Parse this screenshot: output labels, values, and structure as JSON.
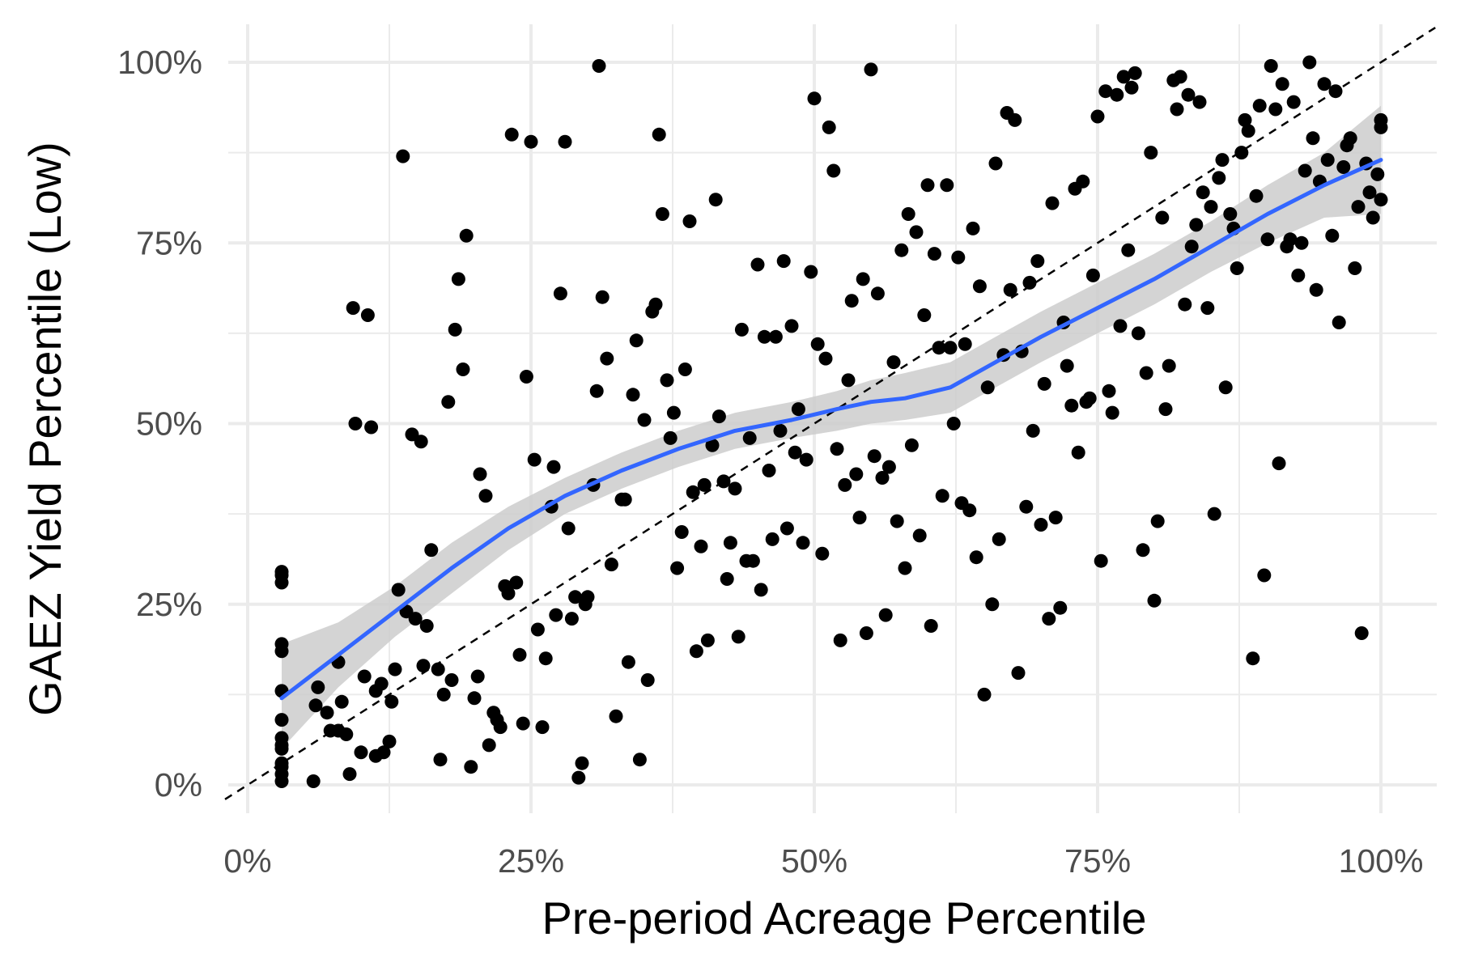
{
  "chart_data": {
    "type": "scatter",
    "title": "",
    "xlabel": "Pre-period Acreage Percentile",
    "ylabel": "GAEZ Yield Percentile (Low)",
    "xlim": [
      -0.02,
      1.05
    ],
    "ylim": [
      -0.02,
      1.03
    ],
    "x_ticks": [
      0,
      0.25,
      0.5,
      0.75,
      1.0
    ],
    "x_tick_labels": [
      "0%",
      "25%",
      "50%",
      "75%",
      "100%"
    ],
    "y_ticks": [
      0,
      0.25,
      0.5,
      0.75,
      1.0
    ],
    "y_tick_labels": [
      "0%",
      "25%",
      "50%",
      "75%",
      "100%"
    ],
    "grid": true,
    "reference_line": {
      "slope": 1,
      "intercept": 0,
      "style": "dashed"
    },
    "colors": {
      "points": "#000000",
      "smooth_line": "#3366ff",
      "ribbon": "#cccccc",
      "grid": "#ebebeb",
      "reference": "#000000"
    },
    "smooth": {
      "x": [
        0.03,
        0.08,
        0.13,
        0.18,
        0.23,
        0.28,
        0.33,
        0.38,
        0.43,
        0.48,
        0.52,
        0.55,
        0.58,
        0.62,
        0.66,
        0.7,
        0.75,
        0.8,
        0.85,
        0.9,
        0.95,
        1.0
      ],
      "y": [
        0.12,
        0.18,
        0.24,
        0.3,
        0.355,
        0.4,
        0.435,
        0.465,
        0.49,
        0.505,
        0.52,
        0.53,
        0.535,
        0.55,
        0.585,
        0.62,
        0.66,
        0.7,
        0.745,
        0.79,
        0.83,
        0.865
      ],
      "lower": [
        0.05,
        0.135,
        0.205,
        0.265,
        0.325,
        0.375,
        0.41,
        0.44,
        0.465,
        0.48,
        0.49,
        0.5,
        0.505,
        0.515,
        0.55,
        0.585,
        0.625,
        0.665,
        0.71,
        0.75,
        0.785,
        0.79
      ],
      "upper": [
        0.195,
        0.225,
        0.275,
        0.335,
        0.385,
        0.425,
        0.46,
        0.49,
        0.515,
        0.53,
        0.545,
        0.56,
        0.57,
        0.585,
        0.62,
        0.655,
        0.695,
        0.735,
        0.78,
        0.83,
        0.875,
        0.94
      ]
    },
    "points": [
      [
        0.03,
        0.005
      ],
      [
        0.03,
        0.015
      ],
      [
        0.03,
        0.025
      ],
      [
        0.03,
        0.03
      ],
      [
        0.03,
        0.05
      ],
      [
        0.03,
        0.055
      ],
      [
        0.03,
        0.065
      ],
      [
        0.03,
        0.09
      ],
      [
        0.03,
        0.13
      ],
      [
        0.03,
        0.185
      ],
      [
        0.03,
        0.195
      ],
      [
        0.03,
        0.28
      ],
      [
        0.03,
        0.29
      ],
      [
        0.03,
        0.295
      ],
      [
        0.058,
        0.005
      ],
      [
        0.06,
        0.11
      ],
      [
        0.062,
        0.135
      ],
      [
        0.07,
        0.1
      ],
      [
        0.073,
        0.075
      ],
      [
        0.08,
        0.075
      ],
      [
        0.08,
        0.17
      ],
      [
        0.083,
        0.115
      ],
      [
        0.087,
        0.07
      ],
      [
        0.09,
        0.015
      ],
      [
        0.093,
        0.66
      ],
      [
        0.095,
        0.5
      ],
      [
        0.1,
        0.045
      ],
      [
        0.103,
        0.15
      ],
      [
        0.106,
        0.65
      ],
      [
        0.109,
        0.495
      ],
      [
        0.113,
        0.04
      ],
      [
        0.113,
        0.13
      ],
      [
        0.118,
        0.14
      ],
      [
        0.12,
        0.045
      ],
      [
        0.125,
        0.06
      ],
      [
        0.127,
        0.115
      ],
      [
        0.13,
        0.16
      ],
      [
        0.133,
        0.27
      ],
      [
        0.137,
        0.87
      ],
      [
        0.14,
        0.24
      ],
      [
        0.145,
        0.485
      ],
      [
        0.148,
        0.23
      ],
      [
        0.153,
        0.475
      ],
      [
        0.155,
        0.165
      ],
      [
        0.158,
        0.22
      ],
      [
        0.162,
        0.325
      ],
      [
        0.168,
        0.16
      ],
      [
        0.17,
        0.035
      ],
      [
        0.173,
        0.125
      ],
      [
        0.177,
        0.53
      ],
      [
        0.18,
        0.145
      ],
      [
        0.183,
        0.63
      ],
      [
        0.186,
        0.7
      ],
      [
        0.19,
        0.575
      ],
      [
        0.193,
        0.76
      ],
      [
        0.197,
        0.025
      ],
      [
        0.2,
        0.12
      ],
      [
        0.203,
        0.15
      ],
      [
        0.205,
        0.43
      ],
      [
        0.21,
        0.4
      ],
      [
        0.213,
        0.055
      ],
      [
        0.217,
        0.1
      ],
      [
        0.22,
        0.09
      ],
      [
        0.223,
        0.08
      ],
      [
        0.227,
        0.275
      ],
      [
        0.23,
        0.265
      ],
      [
        0.233,
        0.9
      ],
      [
        0.237,
        0.28
      ],
      [
        0.24,
        0.18
      ],
      [
        0.243,
        0.085
      ],
      [
        0.246,
        0.565
      ],
      [
        0.25,
        0.89
      ],
      [
        0.253,
        0.45
      ],
      [
        0.256,
        0.215
      ],
      [
        0.26,
        0.08
      ],
      [
        0.263,
        0.175
      ],
      [
        0.268,
        0.385
      ],
      [
        0.27,
        0.44
      ],
      [
        0.272,
        0.235
      ],
      [
        0.276,
        0.68
      ],
      [
        0.28,
        0.89
      ],
      [
        0.283,
        0.355
      ],
      [
        0.286,
        0.23
      ],
      [
        0.289,
        0.26
      ],
      [
        0.292,
        0.01
      ],
      [
        0.295,
        0.03
      ],
      [
        0.298,
        0.25
      ],
      [
        0.3,
        0.26
      ],
      [
        0.305,
        0.415
      ],
      [
        0.308,
        0.545
      ],
      [
        0.31,
        0.995
      ],
      [
        0.313,
        0.675
      ],
      [
        0.317,
        0.59
      ],
      [
        0.321,
        0.305
      ],
      [
        0.325,
        0.095
      ],
      [
        0.33,
        0.395
      ],
      [
        0.333,
        0.395
      ],
      [
        0.336,
        0.17
      ],
      [
        0.34,
        0.54
      ],
      [
        0.343,
        0.615
      ],
      [
        0.346,
        0.035
      ],
      [
        0.35,
        0.505
      ],
      [
        0.353,
        0.145
      ],
      [
        0.357,
        0.655
      ],
      [
        0.36,
        0.665
      ],
      [
        0.363,
        0.9
      ],
      [
        0.366,
        0.79
      ],
      [
        0.37,
        0.56
      ],
      [
        0.373,
        0.48
      ],
      [
        0.376,
        0.515
      ],
      [
        0.379,
        0.3
      ],
      [
        0.383,
        0.35
      ],
      [
        0.386,
        0.575
      ],
      [
        0.39,
        0.78
      ],
      [
        0.393,
        0.405
      ],
      [
        0.396,
        0.185
      ],
      [
        0.4,
        0.33
      ],
      [
        0.403,
        0.415
      ],
      [
        0.406,
        0.2
      ],
      [
        0.41,
        0.47
      ],
      [
        0.413,
        0.81
      ],
      [
        0.416,
        0.51
      ],
      [
        0.42,
        0.42
      ],
      [
        0.423,
        0.285
      ],
      [
        0.426,
        0.335
      ],
      [
        0.43,
        0.41
      ],
      [
        0.433,
        0.205
      ],
      [
        0.436,
        0.63
      ],
      [
        0.44,
        0.31
      ],
      [
        0.443,
        0.48
      ],
      [
        0.446,
        0.31
      ],
      [
        0.45,
        0.72
      ],
      [
        0.453,
        0.27
      ],
      [
        0.456,
        0.62
      ],
      [
        0.46,
        0.435
      ],
      [
        0.463,
        0.34
      ],
      [
        0.466,
        0.62
      ],
      [
        0.47,
        0.49
      ],
      [
        0.473,
        0.725
      ],
      [
        0.476,
        0.355
      ],
      [
        0.48,
        0.635
      ],
      [
        0.483,
        0.46
      ],
      [
        0.486,
        0.52
      ],
      [
        0.49,
        0.335
      ],
      [
        0.493,
        0.45
      ],
      [
        0.497,
        0.71
      ],
      [
        0.5,
        0.95
      ],
      [
        0.503,
        0.61
      ],
      [
        0.507,
        0.32
      ],
      [
        0.51,
        0.59
      ],
      [
        0.513,
        0.91
      ],
      [
        0.517,
        0.85
      ],
      [
        0.52,
        0.465
      ],
      [
        0.523,
        0.2
      ],
      [
        0.527,
        0.415
      ],
      [
        0.53,
        0.56
      ],
      [
        0.533,
        0.67
      ],
      [
        0.537,
        0.43
      ],
      [
        0.54,
        0.37
      ],
      [
        0.543,
        0.7
      ],
      [
        0.546,
        0.21
      ],
      [
        0.55,
        0.99
      ],
      [
        0.553,
        0.455
      ],
      [
        0.556,
        0.68
      ],
      [
        0.56,
        0.425
      ],
      [
        0.563,
        0.235
      ],
      [
        0.566,
        0.44
      ],
      [
        0.57,
        0.585
      ],
      [
        0.573,
        0.365
      ],
      [
        0.577,
        0.74
      ],
      [
        0.58,
        0.3
      ],
      [
        0.583,
        0.79
      ],
      [
        0.586,
        0.47
      ],
      [
        0.59,
        0.765
      ],
      [
        0.593,
        0.345
      ],
      [
        0.597,
        0.65
      ],
      [
        0.6,
        0.83
      ],
      [
        0.603,
        0.22
      ],
      [
        0.606,
        0.735
      ],
      [
        0.61,
        0.605
      ],
      [
        0.613,
        0.4
      ],
      [
        0.617,
        0.83
      ],
      [
        0.62,
        0.605
      ],
      [
        0.623,
        0.5
      ],
      [
        0.627,
        0.73
      ],
      [
        0.63,
        0.39
      ],
      [
        0.633,
        0.61
      ],
      [
        0.637,
        0.38
      ],
      [
        0.64,
        0.77
      ],
      [
        0.643,
        0.315
      ],
      [
        0.646,
        0.69
      ],
      [
        0.65,
        0.125
      ],
      [
        0.653,
        0.55
      ],
      [
        0.657,
        0.25
      ],
      [
        0.66,
        0.86
      ],
      [
        0.663,
        0.34
      ],
      [
        0.667,
        0.595
      ],
      [
        0.67,
        0.93
      ],
      [
        0.673,
        0.685
      ],
      [
        0.677,
        0.92
      ],
      [
        0.68,
        0.155
      ],
      [
        0.683,
        0.6
      ],
      [
        0.687,
        0.385
      ],
      [
        0.69,
        0.695
      ],
      [
        0.693,
        0.49
      ],
      [
        0.697,
        0.725
      ],
      [
        0.7,
        0.36
      ],
      [
        0.703,
        0.555
      ],
      [
        0.707,
        0.23
      ],
      [
        0.71,
        0.805
      ],
      [
        0.713,
        0.37
      ],
      [
        0.717,
        0.245
      ],
      [
        0.72,
        0.64
      ],
      [
        0.723,
        0.58
      ],
      [
        0.727,
        0.525
      ],
      [
        0.73,
        0.825
      ],
      [
        0.733,
        0.46
      ],
      [
        0.737,
        0.835
      ],
      [
        0.74,
        0.53
      ],
      [
        0.743,
        0.535
      ],
      [
        0.746,
        0.705
      ],
      [
        0.75,
        0.925
      ],
      [
        0.753,
        0.31
      ],
      [
        0.757,
        0.96
      ],
      [
        0.76,
        0.545
      ],
      [
        0.763,
        0.515
      ],
      [
        0.767,
        0.955
      ],
      [
        0.77,
        0.635
      ],
      [
        0.773,
        0.98
      ],
      [
        0.777,
        0.74
      ],
      [
        0.78,
        0.965
      ],
      [
        0.783,
        0.985
      ],
      [
        0.786,
        0.625
      ],
      [
        0.79,
        0.325
      ],
      [
        0.793,
        0.57
      ],
      [
        0.797,
        0.875
      ],
      [
        0.8,
        0.255
      ],
      [
        0.803,
        0.365
      ],
      [
        0.807,
        0.785
      ],
      [
        0.81,
        0.52
      ],
      [
        0.813,
        0.58
      ],
      [
        0.817,
        0.975
      ],
      [
        0.82,
        0.935
      ],
      [
        0.823,
        0.98
      ],
      [
        0.827,
        0.665
      ],
      [
        0.83,
        0.955
      ],
      [
        0.833,
        0.745
      ],
      [
        0.837,
        0.775
      ],
      [
        0.84,
        0.945
      ],
      [
        0.843,
        0.82
      ],
      [
        0.847,
        0.66
      ],
      [
        0.85,
        0.8
      ],
      [
        0.853,
        0.375
      ],
      [
        0.857,
        0.84
      ],
      [
        0.86,
        0.865
      ],
      [
        0.863,
        0.55
      ],
      [
        0.867,
        0.79
      ],
      [
        0.87,
        0.77
      ],
      [
        0.873,
        0.715
      ],
      [
        0.877,
        0.875
      ],
      [
        0.88,
        0.92
      ],
      [
        0.883,
        0.905
      ],
      [
        0.887,
        0.175
      ],
      [
        0.89,
        0.815
      ],
      [
        0.893,
        0.94
      ],
      [
        0.897,
        0.29
      ],
      [
        0.9,
        0.755
      ],
      [
        0.903,
        0.995
      ],
      [
        0.907,
        0.935
      ],
      [
        0.91,
        0.445
      ],
      [
        0.913,
        0.97
      ],
      [
        0.917,
        0.745
      ],
      [
        0.92,
        0.755
      ],
      [
        0.923,
        0.945
      ],
      [
        0.927,
        0.705
      ],
      [
        0.93,
        0.75
      ],
      [
        0.933,
        0.85
      ],
      [
        0.937,
        1.0
      ],
      [
        0.94,
        0.895
      ],
      [
        0.943,
        0.685
      ],
      [
        0.946,
        0.835
      ],
      [
        0.95,
        0.97
      ],
      [
        0.953,
        0.865
      ],
      [
        0.957,
        0.76
      ],
      [
        0.96,
        0.96
      ],
      [
        0.963,
        0.64
      ],
      [
        0.967,
        0.855
      ],
      [
        0.97,
        0.885
      ],
      [
        0.973,
        0.895
      ],
      [
        0.977,
        0.715
      ],
      [
        0.98,
        0.8
      ],
      [
        0.983,
        0.21
      ],
      [
        0.987,
        0.86
      ],
      [
        0.99,
        0.82
      ],
      [
        0.993,
        0.785
      ],
      [
        0.997,
        0.845
      ],
      [
        1.0,
        0.91
      ],
      [
        1.0,
        0.92
      ],
      [
        1.0,
        0.81
      ]
    ]
  }
}
